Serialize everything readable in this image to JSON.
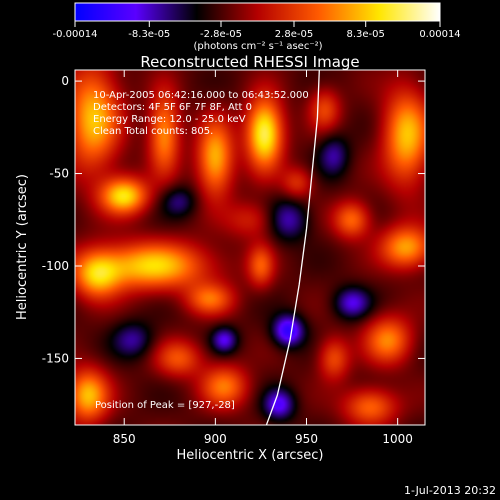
{
  "chart_data": {
    "type": "heatmap",
    "title": "Reconstructed RHESSI Image",
    "xlabel": "Heliocentric X (arcsec)",
    "ylabel": "Heliocentric Y (arcsec)",
    "xlim": [
      823,
      1015
    ],
    "ylim": [
      -186,
      6
    ],
    "x_ticks": [
      850,
      900,
      950,
      1000
    ],
    "y_ticks": [
      0,
      -50,
      -100,
      -150
    ],
    "colorbar": {
      "range": [
        -0.00014,
        0.00014
      ],
      "tick_labels": [
        "-0.00014",
        "-8.3e-05",
        "-2.8e-05",
        "2.8e-05",
        "8.3e-05",
        "0.00014"
      ],
      "tick_values": [
        -0.00014,
        -8.3e-05,
        -2.8e-05,
        2.8e-05,
        8.3e-05,
        0.00014
      ],
      "units_label": "(photons cm⁻² s⁻¹ asec⁻²)",
      "colormap": [
        "#0000ff",
        "#5a00ff",
        "#000000",
        "#b40000",
        "#ff5a00",
        "#ffe600",
        "#ffffff"
      ]
    },
    "annotations": [
      "10-Apr-2005 06:42:16.000 to 06:43:52.000",
      "Detectors: 4F 5F 6F 7F 8F, Att 0",
      "Energy Range: 12.0 - 25.0 keV",
      "Clean     Total counts: 805."
    ],
    "peak_label": "Position of Peak = [927,-28]",
    "peak": [
      927,
      -28
    ],
    "limb_curve": [
      [
        957,
        6
      ],
      [
        956,
        -20
      ],
      [
        953,
        -50
      ],
      [
        950,
        -80
      ],
      [
        946,
        -110
      ],
      [
        941,
        -140
      ],
      [
        934,
        -170
      ],
      [
        928,
        -186
      ]
    ],
    "sources": [
      {
        "x": 833,
        "y": -20,
        "sx": 10,
        "sy": 20,
        "a": 0.75
      },
      {
        "x": 850,
        "y": -62,
        "sx": 9,
        "sy": 7,
        "a": 0.85
      },
      {
        "x": 872,
        "y": -28,
        "sx": 6,
        "sy": 15,
        "a": 0.65
      },
      {
        "x": 900,
        "y": -42,
        "sx": 7,
        "sy": 14,
        "a": 0.75
      },
      {
        "x": 927,
        "y": -28,
        "sx": 7,
        "sy": 13,
        "a": 1.0
      },
      {
        "x": 1005,
        "y": -30,
        "sx": 9,
        "sy": 18,
        "a": 0.75
      },
      {
        "x": 975,
        "y": -75,
        "sx": 7,
        "sy": 7,
        "a": 0.55
      },
      {
        "x": 1005,
        "y": -90,
        "sx": 10,
        "sy": 8,
        "a": 0.7
      },
      {
        "x": 865,
        "y": -100,
        "sx": 22,
        "sy": 9,
        "a": 0.8
      },
      {
        "x": 835,
        "y": -105,
        "sx": 9,
        "sy": 9,
        "a": 0.65
      },
      {
        "x": 897,
        "y": -118,
        "sx": 9,
        "sy": 6,
        "a": 0.5
      },
      {
        "x": 925,
        "y": -100,
        "sx": 5,
        "sy": 8,
        "a": 0.45
      },
      {
        "x": 880,
        "y": -150,
        "sx": 9,
        "sy": 7,
        "a": 0.45
      },
      {
        "x": 905,
        "y": -165,
        "sx": 9,
        "sy": 8,
        "a": 0.55
      },
      {
        "x": 830,
        "y": -170,
        "sx": 8,
        "sy": 10,
        "a": 0.75
      },
      {
        "x": 965,
        "y": -150,
        "sx": 6,
        "sy": 8,
        "a": 0.45
      },
      {
        "x": 995,
        "y": -140,
        "sx": 9,
        "sy": 9,
        "a": 0.6
      },
      {
        "x": 985,
        "y": -176,
        "sx": 10,
        "sy": 7,
        "a": 0.55
      },
      {
        "x": 920,
        "y": -75,
        "sx": 10,
        "sy": 7,
        "a": 0.3
      },
      {
        "x": 945,
        "y": -55,
        "sx": 6,
        "sy": 6,
        "a": 0.35
      },
      {
        "x": 960,
        "y": -15,
        "sx": 6,
        "sy": 8,
        "a": 0.4
      },
      {
        "x": 940,
        "y": -135,
        "sx": 6,
        "sy": 6,
        "a": -0.65
      },
      {
        "x": 935,
        "y": -175,
        "sx": 6,
        "sy": 6,
        "a": -0.5
      },
      {
        "x": 905,
        "y": -140,
        "sx": 5,
        "sy": 5,
        "a": -0.45
      },
      {
        "x": 940,
        "y": -75,
        "sx": 8,
        "sy": 8,
        "a": -0.4
      },
      {
        "x": 975,
        "y": -120,
        "sx": 7,
        "sy": 6,
        "a": -0.45
      },
      {
        "x": 965,
        "y": -40,
        "sx": 6,
        "sy": 8,
        "a": -0.35
      },
      {
        "x": 880,
        "y": -65,
        "sx": 7,
        "sy": 6,
        "a": -0.3
      },
      {
        "x": 855,
        "y": -140,
        "sx": 8,
        "sy": 7,
        "a": -0.35
      }
    ]
  },
  "footer": {
    "timestamp": "1-Jul-2013 20:32"
  }
}
